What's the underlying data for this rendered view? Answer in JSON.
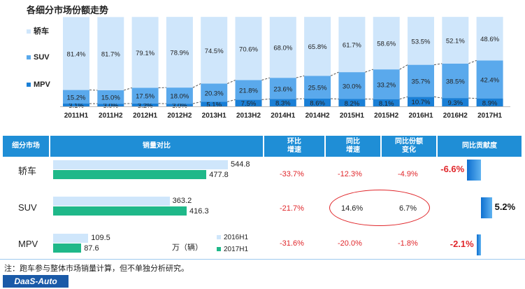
{
  "title": "各细分市场份额走势",
  "legend": [
    {
      "label": "轿车",
      "color": "#cfe6fb"
    },
    {
      "label": "SUV",
      "color": "#5aa9ec"
    },
    {
      "label": "MPV",
      "color": "#1a7fd6"
    }
  ],
  "chart_data": {
    "type": "bar",
    "stacked": true,
    "title": "各细分市场份额走势",
    "categories": [
      "2011H1",
      "2011H2",
      "2012H1",
      "2012H2",
      "2013H1",
      "2013H2",
      "2014H1",
      "2014H2",
      "2015H1",
      "2015H2",
      "2016H1",
      "2016H2",
      "2017H1"
    ],
    "series": [
      {
        "name": "MPV",
        "color": "#1a7fd6",
        "values": [
          3.1,
          3.0,
          3.2,
          3.0,
          5.1,
          7.5,
          8.3,
          8.6,
          8.2,
          8.1,
          10.7,
          9.3,
          8.9
        ],
        "labels": [
          "3.1%",
          "3.0%",
          "3.2%",
          "3.0%",
          "5.1%",
          "7.5%",
          "8.3%",
          "8.6%",
          "8.2%",
          "8.1%",
          "10.7%",
          "9.3%",
          "8.9%"
        ]
      },
      {
        "name": "SUV",
        "color": "#5aa9ec",
        "values": [
          15.2,
          15.0,
          17.5,
          18.0,
          20.3,
          21.8,
          23.6,
          25.5,
          30.0,
          33.2,
          35.7,
          38.5,
          42.4
        ],
        "labels": [
          "15.2%",
          "15.0%",
          "17.5%",
          "18.0%",
          "20.3%",
          "21.8%",
          "23.6%",
          "25.5%",
          "30.0%",
          "33.2%",
          "35.7%",
          "38.5%",
          "42.4%"
        ]
      },
      {
        "name": "轿车",
        "color": "#cfe6fb",
        "values": [
          81.4,
          81.7,
          79.1,
          78.9,
          74.5,
          70.6,
          68.0,
          65.8,
          61.7,
          58.6,
          53.5,
          52.1,
          48.6
        ],
        "labels": [
          "81.4%",
          "81.7%",
          "79.1%",
          "78.9%",
          "74.5%",
          "70.6%",
          "68.0%",
          "65.8%",
          "61.7%",
          "58.6%",
          "53.5%",
          "52.1%",
          "48.6%"
        ]
      }
    ],
    "ylim": [
      0,
      100
    ],
    "legend_position": "left"
  },
  "table": {
    "headers": {
      "segment": "细分市场",
      "sales": "销量对比",
      "hb_line1": "环比",
      "hb_line2": "增速",
      "tb_line1": "同比",
      "tb_line2": "增速",
      "sh_line1": "同比份额",
      "sh_line2": "变化",
      "contrib": "同比贡献度"
    },
    "sales_max": 544.8,
    "rows": [
      {
        "name": "轿车",
        "v2016": 544.8,
        "v2017": 477.8,
        "l2016": "544.8",
        "l2017": "477.8",
        "hb": "-33.7%",
        "tb": "-12.3%",
        "share": "-4.9%",
        "contrib": -6.6,
        "contrib_label": "-6.6%"
      },
      {
        "name": "SUV",
        "v2016": 363.2,
        "v2017": 416.3,
        "l2016": "363.2",
        "l2017": "416.3",
        "hb": "-21.7%",
        "tb": "14.6%",
        "share": "6.7%",
        "contrib": 5.2,
        "contrib_label": "5.2%"
      },
      {
        "name": "MPV",
        "v2016": 109.5,
        "v2017": 87.6,
        "l2016": "109.5",
        "l2017": "87.6",
        "hb": "-31.6%",
        "tb": "-20.0%",
        "share": "-1.8%",
        "contrib": -2.1,
        "contrib_label": "-2.1%"
      }
    ],
    "unit": "万（辆）",
    "legend": [
      {
        "label": "2016H1",
        "color": "#cfe6fb"
      },
      {
        "label": "2017H1",
        "color": "#1fb889"
      }
    ]
  },
  "note": "注：跑车参与整体市场销量计算，但不单独分析研究。",
  "logo": "DaaS-Auto"
}
